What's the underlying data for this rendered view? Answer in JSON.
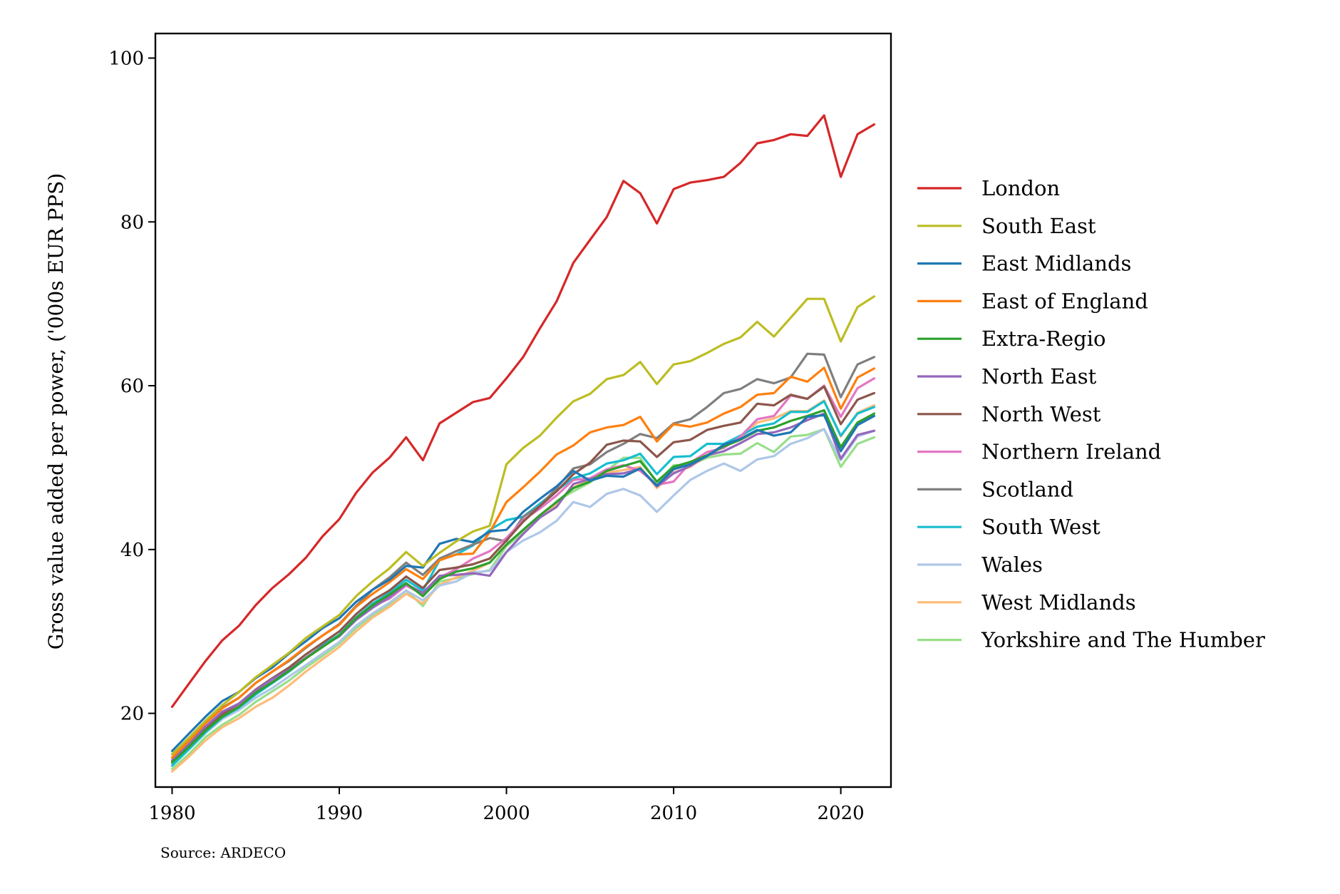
{
  "source_note": "Source: ARDECO",
  "chart_data": {
    "type": "line",
    "ylabel": "Gross value added per power, ('000s EUR PPS)",
    "xlabel": "",
    "xlim": [
      1979,
      2023
    ],
    "ylim": [
      11,
      103
    ],
    "x_ticks": [
      1980,
      1990,
      2000,
      2010,
      2020
    ],
    "y_ticks": [
      20,
      40,
      60,
      80,
      100
    ],
    "x_tick_labels": [
      "1980",
      "1990",
      "2000",
      "2010",
      "2020"
    ],
    "y_tick_labels": [
      "20",
      "40",
      "60",
      "80",
      "100"
    ],
    "legend_position": "right",
    "grid": false,
    "x": [
      1980,
      1981,
      1982,
      1983,
      1984,
      1985,
      1986,
      1987,
      1988,
      1989,
      1990,
      1991,
      1992,
      1993,
      1994,
      1995,
      1996,
      1997,
      1998,
      1999,
      2000,
      2001,
      2002,
      2003,
      2004,
      2005,
      2006,
      2007,
      2008,
      2009,
      2010,
      2011,
      2012,
      2013,
      2014,
      2015,
      2016,
      2017,
      2018,
      2019,
      2020,
      2021,
      2022
    ],
    "series": [
      {
        "name": "London",
        "color": "#d62728",
        "values": [
          20.8,
          23.6,
          26.4,
          28.9,
          30.7,
          33.2,
          35.3,
          37.0,
          39.0,
          41.6,
          43.7,
          46.9,
          49.4,
          51.2,
          53.7,
          50.9,
          55.4,
          56.7,
          58.0,
          58.5,
          60.9,
          63.5,
          67.0,
          70.3,
          75.0,
          77.8,
          80.6,
          85.0,
          83.5,
          79.8,
          84.0,
          84.8,
          85.1,
          85.5,
          87.2,
          89.6,
          90.0,
          90.7,
          90.5,
          93.0,
          85.5,
          90.7,
          91.9
        ]
      },
      {
        "name": "South East",
        "color": "#bcbd22",
        "values": [
          15.0,
          17.0,
          19.1,
          21.0,
          22.6,
          24.4,
          25.9,
          27.4,
          29.2,
          30.6,
          32.0,
          34.3,
          36.1,
          37.7,
          39.7,
          38.0,
          39.6,
          41.0,
          42.2,
          42.9,
          50.4,
          52.4,
          53.9,
          56.1,
          58.1,
          59.0,
          60.8,
          61.3,
          62.9,
          60.2,
          62.6,
          63.0,
          64.0,
          65.1,
          65.9,
          67.8,
          66.0,
          68.3,
          70.6,
          70.6,
          65.4,
          69.6,
          70.9
        ]
      },
      {
        "name": "East Midlands",
        "color": "#1f77b4",
        "values": [
          15.4,
          17.5,
          19.6,
          21.5,
          22.6,
          24.3,
          25.6,
          27.3,
          28.8,
          30.4,
          31.6,
          33.6,
          35.1,
          36.3,
          38.0,
          37.8,
          40.7,
          41.3,
          40.9,
          42.2,
          42.4,
          44.6,
          46.2,
          47.7,
          49.6,
          48.4,
          49.0,
          48.9,
          49.9,
          47.8,
          49.8,
          50.4,
          51.4,
          52.8,
          53.5,
          54.6,
          53.9,
          54.3,
          56.2,
          56.4,
          52.0,
          55.2,
          56.3
        ]
      },
      {
        "name": "East of England",
        "color": "#ff7f0e",
        "values": [
          14.6,
          16.6,
          18.8,
          20.6,
          21.9,
          23.7,
          25.1,
          26.5,
          28.1,
          29.5,
          30.8,
          33.0,
          34.6,
          36.0,
          37.6,
          36.4,
          38.7,
          39.4,
          39.5,
          42.1,
          45.8,
          47.6,
          49.5,
          51.6,
          52.7,
          54.3,
          54.9,
          55.2,
          56.2,
          53.2,
          55.3,
          55.0,
          55.5,
          56.6,
          57.4,
          58.9,
          59.1,
          61.1,
          60.5,
          62.2,
          57.2,
          61.0,
          62.1
        ]
      },
      {
        "name": "Extra-Regio",
        "color": "#2ca02c",
        "values": [
          14.0,
          15.9,
          17.9,
          19.6,
          20.8,
          22.5,
          23.8,
          25.2,
          26.7,
          28.1,
          29.5,
          31.6,
          33.2,
          34.5,
          35.9,
          34.3,
          36.4,
          37.3,
          37.7,
          38.4,
          40.6,
          42.4,
          44.2,
          45.8,
          47.5,
          48.3,
          49.6,
          50.2,
          50.8,
          48.3,
          50.1,
          50.7,
          51.5,
          52.6,
          53.4,
          54.5,
          54.9,
          55.7,
          56.3,
          57.0,
          52.5,
          55.5,
          56.6
        ]
      },
      {
        "name": "North East",
        "color": "#9467bd",
        "values": [
          14.3,
          16.3,
          18.4,
          20.2,
          21.2,
          22.8,
          24.2,
          25.3,
          26.8,
          28.2,
          29.4,
          31.4,
          32.9,
          34.2,
          35.8,
          34.7,
          36.8,
          36.9,
          37.1,
          36.8,
          39.7,
          41.9,
          43.9,
          45.2,
          48.0,
          48.6,
          49.2,
          49.3,
          49.9,
          47.7,
          49.3,
          50.2,
          51.5,
          52.0,
          53.0,
          54.1,
          54.3,
          54.9,
          55.8,
          56.6,
          51.1,
          54.0,
          54.5
        ]
      },
      {
        "name": "North West",
        "color": "#8c564b",
        "values": [
          14.1,
          16.1,
          18.2,
          19.9,
          21.2,
          22.9,
          24.3,
          25.6,
          27.2,
          28.6,
          30.0,
          32.1,
          33.8,
          35.0,
          36.7,
          35.3,
          37.5,
          37.8,
          38.2,
          38.9,
          41.1,
          43.4,
          45.3,
          47.1,
          49.2,
          50.6,
          52.8,
          53.3,
          53.2,
          51.3,
          53.1,
          53.4,
          54.6,
          55.1,
          55.5,
          57.8,
          57.6,
          58.9,
          58.4,
          59.9,
          55.3,
          58.3,
          59.1
        ]
      },
      {
        "name": "Northern Ireland",
        "color": "#e377c2",
        "values": [
          14.3,
          16.2,
          18.3,
          19.9,
          21.0,
          22.7,
          23.9,
          25.2,
          26.7,
          28.1,
          29.5,
          31.5,
          33.1,
          34.0,
          35.6,
          34.5,
          36.6,
          37.6,
          38.9,
          39.8,
          41.4,
          43.6,
          45.0,
          46.6,
          48.5,
          48.7,
          49.8,
          50.3,
          49.6,
          47.9,
          48.3,
          50.6,
          51.9,
          52.4,
          53.8,
          55.9,
          56.3,
          58.8,
          58.4,
          60.0,
          56.2,
          59.7,
          60.9
        ]
      },
      {
        "name": "Scotland",
        "color": "#7f7f7f",
        "values": [
          15.0,
          16.9,
          19.0,
          20.7,
          21.9,
          23.7,
          25.1,
          26.4,
          28.0,
          29.5,
          30.9,
          33.1,
          35.1,
          36.6,
          38.4,
          36.9,
          38.9,
          39.8,
          40.6,
          41.4,
          41.0,
          44.0,
          45.3,
          47.5,
          49.9,
          50.4,
          51.9,
          52.9,
          54.1,
          53.6,
          55.4,
          55.9,
          57.4,
          59.1,
          59.6,
          60.8,
          60.3,
          61.0,
          63.9,
          63.8,
          58.6,
          62.6,
          63.5
        ]
      },
      {
        "name": "South West",
        "color": "#17becf",
        "values": [
          13.6,
          15.6,
          17.7,
          19.5,
          20.7,
          22.3,
          23.7,
          25.1,
          26.7,
          28.3,
          29.6,
          31.7,
          33.4,
          34.7,
          36.3,
          35.0,
          38.7,
          39.4,
          40.5,
          42.4,
          43.6,
          44.0,
          45.6,
          47.2,
          48.7,
          49.3,
          50.5,
          50.9,
          51.7,
          49.2,
          51.3,
          51.4,
          52.9,
          52.9,
          53.9,
          55.0,
          55.4,
          56.8,
          56.8,
          58.1,
          53.9,
          56.6,
          57.4
        ]
      },
      {
        "name": "Wales",
        "color": "#aec7e8",
        "values": [
          13.8,
          15.6,
          17.6,
          19.3,
          20.4,
          21.9,
          23.1,
          24.5,
          25.9,
          27.3,
          28.7,
          30.7,
          32.2,
          33.5,
          35.0,
          33.8,
          35.6,
          36.1,
          37.2,
          37.4,
          39.7,
          41.1,
          42.1,
          43.5,
          45.8,
          45.2,
          46.8,
          47.4,
          46.6,
          44.6,
          46.6,
          48.5,
          49.6,
          50.5,
          49.6,
          51.0,
          51.4,
          52.9,
          53.6,
          54.7,
          50.9,
          53.8,
          54.5
        ]
      },
      {
        "name": "West Midlands",
        "color": "#ffbb78",
        "values": [
          12.9,
          14.7,
          16.7,
          18.3,
          19.4,
          20.8,
          21.9,
          23.4,
          25.1,
          26.6,
          28.1,
          30.0,
          31.7,
          33.0,
          34.6,
          33.4,
          35.7,
          36.6,
          37.4,
          38.4,
          40.6,
          42.4,
          44.1,
          45.5,
          47.6,
          48.5,
          49.4,
          49.7,
          50.1,
          47.5,
          49.4,
          50.1,
          51.5,
          52.8,
          53.6,
          55.5,
          56.0,
          56.9,
          56.9,
          58.2,
          53.8,
          56.7,
          57.6
        ]
      },
      {
        "name": "Yorkshire and The Humber",
        "color": "#98df8a",
        "values": [
          13.2,
          15.0,
          17.1,
          18.6,
          19.8,
          21.4,
          22.7,
          24.0,
          25.6,
          27.0,
          28.5,
          30.4,
          32.0,
          33.3,
          35.0,
          33.1,
          36.1,
          36.5,
          37.0,
          37.5,
          40.4,
          42.1,
          43.9,
          45.9,
          47.1,
          48.2,
          49.6,
          51.2,
          51.2,
          48.1,
          50.3,
          50.3,
          51.2,
          51.6,
          51.7,
          53.0,
          51.9,
          53.8,
          54.0,
          54.7,
          50.1,
          52.9,
          53.7
        ]
      }
    ]
  }
}
